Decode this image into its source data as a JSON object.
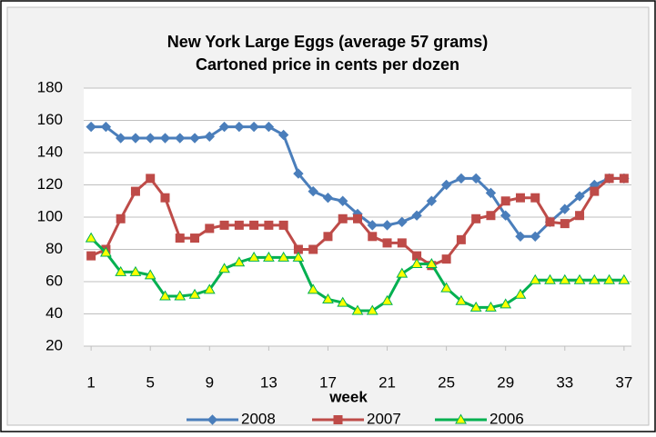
{
  "chart_data": {
    "type": "line",
    "title": [
      "New  York Large Eggs (average 57 grams)",
      "Cartoned price in cents per dozen"
    ],
    "x_label": "week",
    "x": [
      1,
      2,
      3,
      4,
      5,
      6,
      7,
      8,
      9,
      10,
      11,
      12,
      13,
      14,
      15,
      16,
      17,
      18,
      19,
      20,
      21,
      22,
      23,
      24,
      25,
      26,
      27,
      28,
      29,
      30,
      31,
      32,
      33,
      34,
      35,
      36,
      37
    ],
    "xlim": [
      0.5,
      37.5
    ],
    "xticks": [
      1,
      5,
      9,
      13,
      17,
      21,
      25,
      29,
      33,
      37
    ],
    "ylim": [
      20,
      180
    ],
    "yticks": [
      20,
      40,
      60,
      80,
      100,
      120,
      140,
      160,
      180
    ],
    "grid": true,
    "legend": "bottom",
    "series": [
      {
        "name": "2008",
        "color": "#4a7ebb",
        "marker": "diamond",
        "marker_fill": "#4a7ebb",
        "values": [
          156,
          156,
          149,
          149,
          149,
          149,
          149,
          149,
          150,
          156,
          156,
          156,
          156,
          151,
          127,
          116,
          112,
          110,
          102,
          95,
          95,
          97,
          101,
          110,
          120,
          124,
          124,
          115,
          101,
          88,
          88,
          97,
          105,
          113,
          120,
          124,
          124
        ]
      },
      {
        "name": "2007",
        "color": "#be4b48",
        "marker": "square",
        "marker_fill": "#be4b48",
        "values": [
          76,
          80,
          99,
          116,
          124,
          112,
          87,
          87,
          93,
          95,
          95,
          95,
          95,
          95,
          80,
          80,
          88,
          99,
          99,
          88,
          84,
          84,
          76,
          70,
          74,
          86,
          99,
          101,
          110,
          112,
          112,
          97,
          96,
          101,
          116,
          124,
          124
        ]
      },
      {
        "name": "2006",
        "color": "#00b050",
        "marker": "triangle",
        "marker_fill": "#ffff00",
        "values": [
          87,
          78,
          66,
          66,
          64,
          51,
          51,
          52,
          55,
          68,
          72,
          75,
          75,
          75,
          75,
          55,
          49,
          47,
          42,
          42,
          48,
          65,
          71,
          71,
          56,
          48,
          44,
          44,
          46,
          52,
          61,
          61,
          61,
          61,
          61,
          61,
          61
        ]
      }
    ]
  }
}
